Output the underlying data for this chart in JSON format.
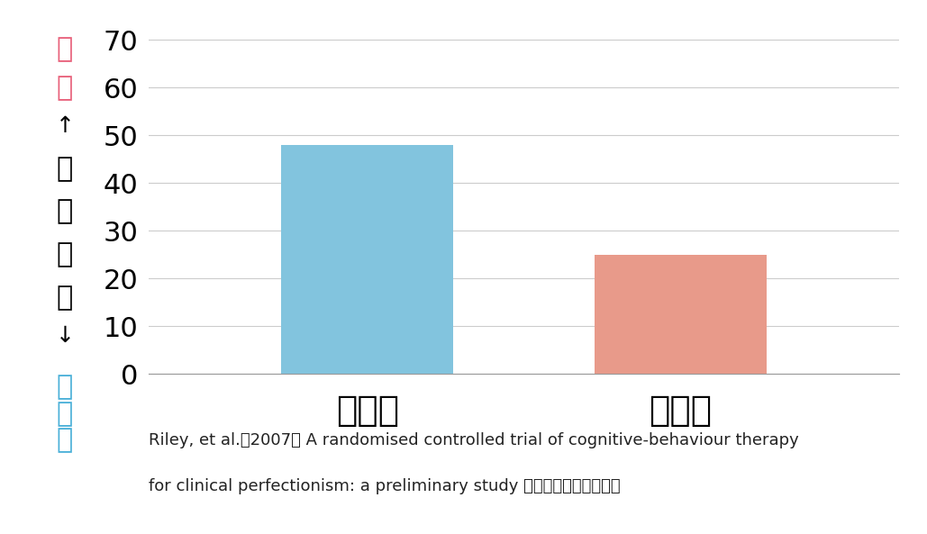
{
  "categories": [
    "治療前",
    "治療後"
  ],
  "values": [
    48,
    25
  ],
  "bar_colors": [
    "#82c4de",
    "#e89a8a"
  ],
  "ylim": [
    0,
    75
  ],
  "yticks": [
    0,
    10,
    20,
    30,
    40,
    50,
    60,
    70
  ],
  "ylabel_top_chars": [
    "多",
    "い"
  ],
  "ylabel_arrow_up": "↑",
  "ylabel_main_chars": [
    "完",
    "全",
    "主",
    "義"
  ],
  "ylabel_arrow_down": "↓",
  "ylabel_bottom_chars": [
    "少",
    "な",
    "い"
  ],
  "ylabel_top_color": "#e8607a",
  "ylabel_bottom_color": "#4ab0d8",
  "ylabel_main_color": "#000000",
  "caption_line1": "Riley, et al.（2007） A randomised controlled trial of cognitive-behaviour therapy",
  "caption_line2": "for clinical perfectionism: a preliminary study より一部編成して掲載",
  "background_color": "#ffffff",
  "grid_color": "#cccccc",
  "tick_label_fontsize": 22,
  "bar_label_fontsize": 28,
  "caption_fontsize": 13,
  "ylabel_char_fontsize": 22,
  "ylabel_arrow_fontsize": 18
}
